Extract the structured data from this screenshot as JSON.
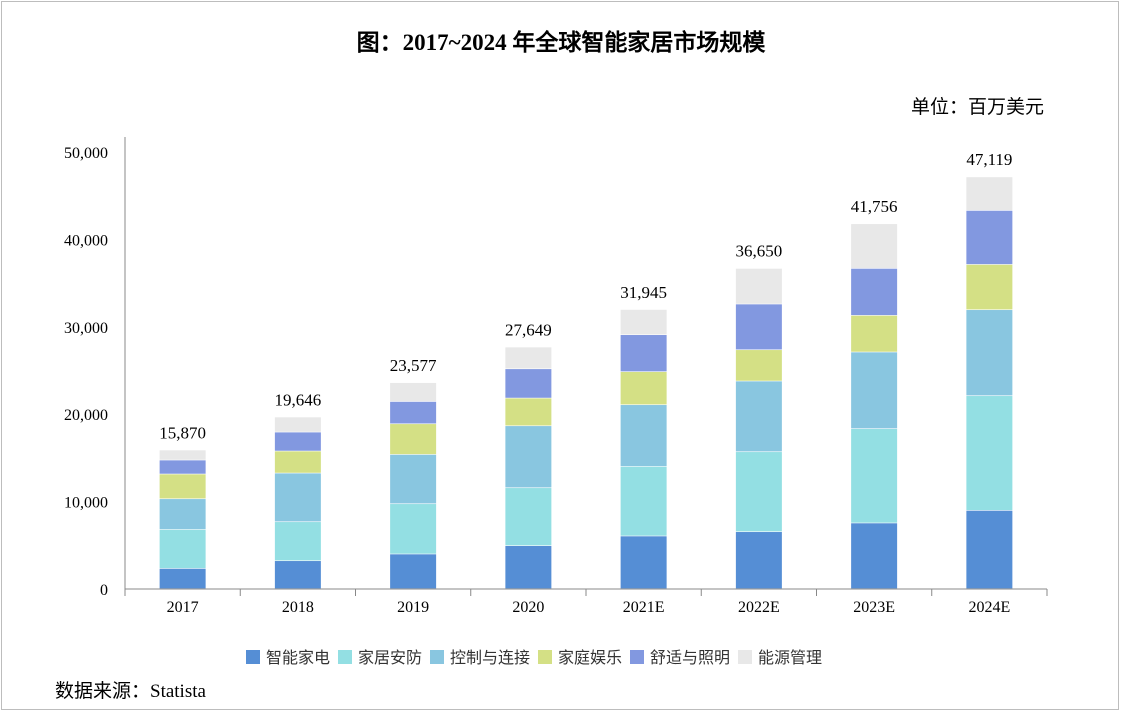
{
  "chart_data": {
    "type": "bar",
    "stacked": true,
    "title": "图：2017~2024 年全球智能家居市场规模",
    "unit_label": "单位：百万美元",
    "source": "数据来源：Statista",
    "categories": [
      "2017",
      "2018",
      "2019",
      "2020",
      "2021E",
      "2022E",
      "2023E",
      "2024E"
    ],
    "totals": [
      "15,870",
      "19,646",
      "23,577",
      "27,649",
      "31,945",
      "36,650",
      "41,756",
      "47,119"
    ],
    "total_values": [
      15870,
      19646,
      23577,
      27649,
      31945,
      36650,
      41756,
      47119
    ],
    "ylim": [
      0,
      50000
    ],
    "yticks": [
      "0",
      "10,000",
      "20,000",
      "30,000",
      "40,000",
      "50,000"
    ],
    "grid": false,
    "legend_position": "bottom",
    "series": [
      {
        "name": "智能家电",
        "color": "#558ed5",
        "values": [
          2320,
          3200,
          3970,
          4920,
          6030,
          6520,
          7520,
          8960
        ]
      },
      {
        "name": "家居安防",
        "color": "#93dfe3",
        "values": [
          4460,
          4460,
          5750,
          6630,
          7960,
          9150,
          10790,
          13120
        ]
      },
      {
        "name": "控制与连接",
        "color": "#89c6e0",
        "values": [
          3510,
          5570,
          5640,
          7090,
          7060,
          8090,
          8770,
          9840
        ]
      },
      {
        "name": "家庭娱乐",
        "color": "#d4e085",
        "values": [
          2830,
          2520,
          3510,
          3170,
          3780,
          3580,
          4190,
          5180
        ]
      },
      {
        "name": "舒适与照明",
        "color": "#8298e0",
        "values": [
          1600,
          2170,
          2550,
          3350,
          4230,
          5230,
          5380,
          6180
        ]
      },
      {
        "name": "能源管理",
        "color": "#e8e8e8",
        "values": [
          1150,
          1726,
          2157,
          2489,
          2885,
          4080,
          5106,
          3839
        ]
      }
    ]
  }
}
